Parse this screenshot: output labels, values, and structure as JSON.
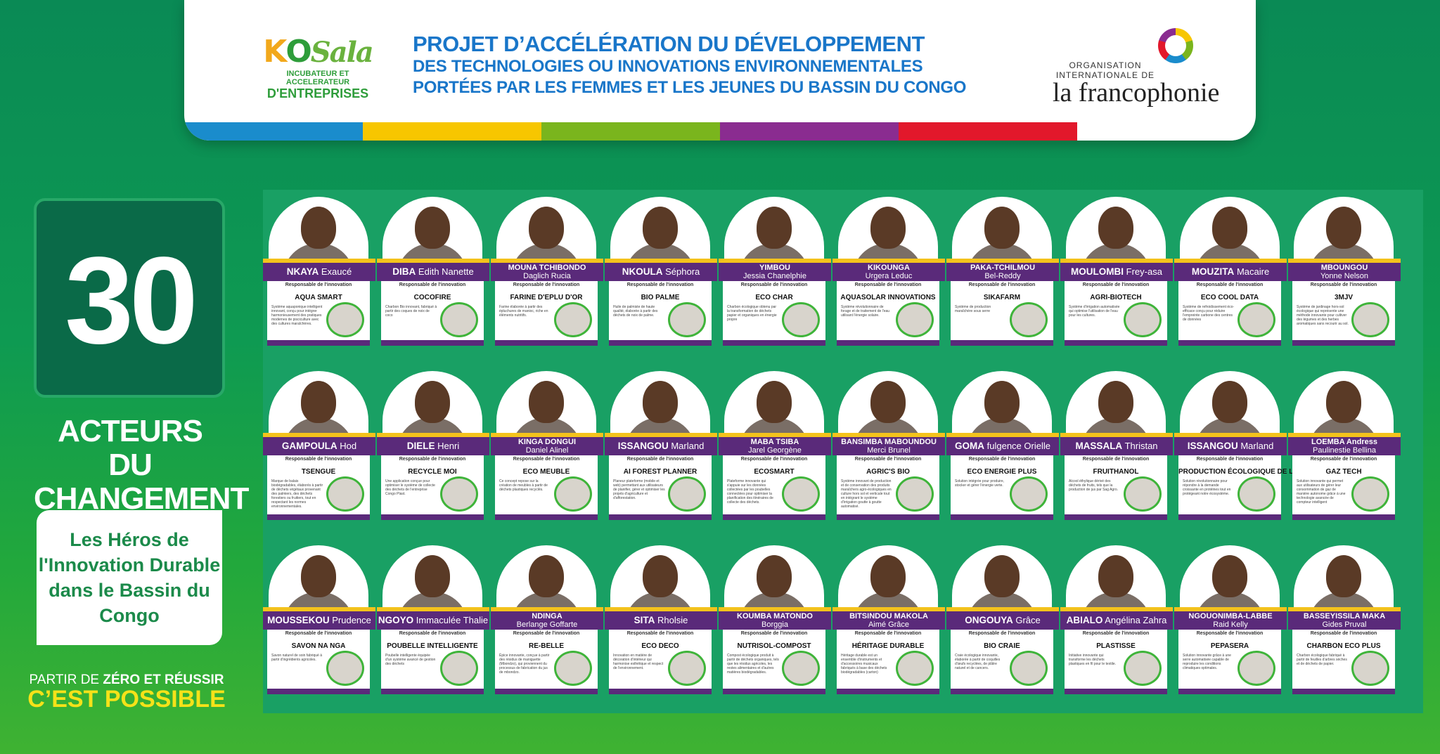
{
  "header": {
    "kosala": {
      "brand": "KOSala",
      "line1": "INCUBATEUR ET ACCELERATEUR",
      "line2": "D'ENTREPRISES"
    },
    "title_line1": "PROJET D’ACCÉLÉRATION DU DÉVELOPPEMENT",
    "title_line2": "DES TECHNOLOGIES OU INNOVATIONS ENVIRONNEMENTALES",
    "title_line3": "PORTÉES PAR LES FEMMES ET LES JEUNES DU BASSIN DU CONGO",
    "oif_line1": "ORGANISATION INTERNATIONALE DE",
    "oif_line2": "la francophonie",
    "stripe_colors": [
      "#1a8ccc",
      "#f7c600",
      "#7ab51d",
      "#8a2c90",
      "#e2182b",
      "#ffffff"
    ]
  },
  "left": {
    "number": "30",
    "acteurs": "ACTEURS DU CHANGEMENT",
    "heros": "Les Héros de l'Innovation Durable dans le Bassin du Congo",
    "partir_prefix": "PARTIR DE ",
    "partir_bold": "ZÉRO ET RÉUSSIR",
    "possible": "C’EST POSSIBLE"
  },
  "resp_label": "Responsable de l'innovation",
  "cards": [
    {
      "last": "NKAYA",
      "first": "Exaucé",
      "innovation": "AQUA SMART",
      "desc": "Système aquaponique intelligent innovant, conçu pour intégrer harmonieusement des pratiques modernes de pisciculture avec des cultures maraîchères."
    },
    {
      "last": "DIBA",
      "first": "Edith Nanette",
      "innovation": "COCOFIRE",
      "desc": "Charbon Bio innovant, fabriqué à partir des coques de noix de coco"
    },
    {
      "last": "MOUNA TCHIBONDO",
      "first": "Daglich Rucia",
      "innovation": "FARINE D'EPLU D'OR",
      "desc": "Farine élaborée à partir des épluchures de manioc, riche en éléments nutritifs."
    },
    {
      "last": "NKOULA",
      "first": "Séphora",
      "innovation": "BIO PALME",
      "desc": "Huile de palmiste de haute qualité, élaborée à partir des déchets de noix de palme."
    },
    {
      "last": "YIMBOU",
      "first": "Jessia Chanelphie",
      "innovation": "ECO CHAR",
      "desc": "Charbon écologique obtenu par la transformation de déchets papier et organiques en énergie propre"
    },
    {
      "last": "KIKOUNGA",
      "first": "Urgera Leduc",
      "innovation": "AQUASOLAR INNOVATIONS",
      "desc": "Système révolutionnaire de forage et de traitement de l'eau utilisant l'énergie solaire."
    },
    {
      "last": "PAKA-TCHILMOU",
      "first": "Bel-Reddy",
      "innovation": "SIKAFARM",
      "desc": "Système de production maraîchère sous serre"
    },
    {
      "last": "MOULOMBI",
      "first": "Frey-asa",
      "innovation": "AGRI-BIOTECH",
      "desc": "Système d'irrigation automatisée qui optimise l'utilisation de l'eau pour les cultures."
    },
    {
      "last": "MOUZITA",
      "first": "Macaire",
      "innovation": "ECO COOL DATA",
      "desc": "Système de refroidissement éco-efficace conçu pour réduire l'empreinte carbone des centres de données"
    },
    {
      "last": "MBOUNGOU",
      "first": "Yonne Nelson",
      "innovation": "3MJV",
      "desc": "Système de jardinage hors-sol écologique qui représente une méthode innovante pour cultiver des légumes et des herbes aromatiques sans recourir au sol."
    },
    {
      "last": "GAMPOULA",
      "first": "Hod",
      "innovation": "TSENGUE",
      "desc": "Marque de balais biodégradables, élaborés à partir de déchets végétaux provenant des palmiers, des déchets forestiers ou fruitiers, tout en respectant les normes environnementales."
    },
    {
      "last": "DIELE",
      "first": "Henri",
      "innovation": "RECYCLE MOI",
      "desc": "Une application conçue pour optimiser le système de collecte des déchets de l'entreprise Congo Plast."
    },
    {
      "last": "KINGA DONGUI",
      "first": "Daniel Alinel",
      "innovation": "ECO MEUBLE",
      "desc": "Ce concept repose sur la création de meubles à partir de déchets plastiques recyclés."
    },
    {
      "last": "ISSANGOU",
      "first": "Marland",
      "innovation": "AI FOREST PLANNER",
      "desc": "Planeur plateforme (mobile et web) permettant aux utilisateurs de planifier, gérer et optimiser les projets d'agriculture et d'afforestation."
    },
    {
      "last": "MABA TSIBA",
      "first": "Jarel Georgène",
      "innovation": "ECOSMART",
      "desc": "Plateforme innovante qui s'appuie sur les données collectées par les poubelles connectées pour optimiser la planification des itinéraires de collecte des déchets."
    },
    {
      "last": "BANSIMBA MABOUNDOU",
      "first": "Merci Brunel",
      "innovation": "AGRIC'S BIO",
      "desc": "Système innovant de production et de conservation des produits maraîchers agro-écologiques en culture hors sol et verticale tout en intégrant le système d'irrigation goutte à goutte automatisé."
    },
    {
      "last": "GOMA",
      "first": "fulgence Orielle",
      "innovation": "ECO ENERGIE PLUS",
      "desc": "Solution intégrée pour produire, stocker et gérer l'énergie verte."
    },
    {
      "last": "MASSALA",
      "first": "Thristan",
      "innovation": "FRUITHANOL",
      "desc": "Alcool éthylique dérivé des déchets de fruits, tels que la production de jus par Sag Agro."
    },
    {
      "last": "ISSANGOU",
      "first": "Marland",
      "innovation": "PRODUCTION ÉCOLOGIQUE DE LARVE DE CHARANÇON",
      "desc": "Solution révolutionnaire pour répondre à la demande croissante en protéines tout en protégeant notre écosystème."
    },
    {
      "last": "LOEMBA Andress",
      "first": "Paulinestie Bellina",
      "innovation": "GAZ TECH",
      "desc": "Solution innovante qui permet aux utilisateurs de gérer leur consommation de gaz de manière autonome grâce à une technologie avancée de compteur intelligent"
    },
    {
      "last": "MOUSSEKOU",
      "first": "Prudence",
      "innovation": "SAVON NA NGA",
      "desc": "Savon naturel de soin fabriqué à partir d'ingrédients agricoles."
    },
    {
      "last": "NGOYO",
      "first": "Immaculée Thalie",
      "innovation": "POUBELLE INTELLIGENTE",
      "desc": "Poubelle intelligente équipée d'un système avancé de gestion des déchets"
    },
    {
      "last": "NDINGA",
      "first": "Berlange Goffarte",
      "innovation": "RE-BELLE",
      "desc": "Épice innovante, conçue à partir des résidus de maniguette (Mbondzo), qui proviennent du processus de fabrication du jus de mbondzo."
    },
    {
      "last": "SITA",
      "first": "Rholsie",
      "innovation": "ECO DECO",
      "desc": "Innovation en matière de décoration d'intérieur qui harmonise esthétique et respect de l'environnement."
    },
    {
      "last": "KOUMBA MATONDO",
      "first": "Borggia",
      "innovation": "NUTRISOL-COMPOST",
      "desc": "Compost écologique produit à partir de déchets organiques, tels que les résidus agricoles, les restes alimentaires et d'autres matières biodégradables."
    },
    {
      "last": "BITSINDOU MAKOLA",
      "first": "Aimé Grâce",
      "innovation": "HÉRITAGE DURABLE",
      "desc": "Héritage durable est un ensemble d'instruments et d'accessoires musicaux fabriqués à base des déchets biodégradables (carton)"
    },
    {
      "last": "ONGOUYA",
      "first": "Grâce",
      "innovation": "BIO CRAIE",
      "desc": "Craie écologique innovante, élaborée à partir de coquilles d'œufs recyclées, de plâtre naturel et de cancers."
    },
    {
      "last": "ABIALO",
      "first": "Angélina Zahra",
      "innovation": "PLASTISSE",
      "desc": "Initiative innovante qui transforme les déchets plastiques en fil pour le textile."
    },
    {
      "last": "NGOUONIMBA-LABBE",
      "first": "Raid Kelly",
      "innovation": "PEPASERA",
      "desc": "Solution innovante grâce à une serre automatisée capable de reproduire les conditions climatiques optimales."
    },
    {
      "last": "BASSEYISSILA MAKA",
      "first": "Gides Pruval",
      "innovation": "CHARBON ECO PLUS",
      "desc": "Charbon écologique fabriqué à partir de feuilles d'arbres sèches et de déchets de papier."
    }
  ]
}
